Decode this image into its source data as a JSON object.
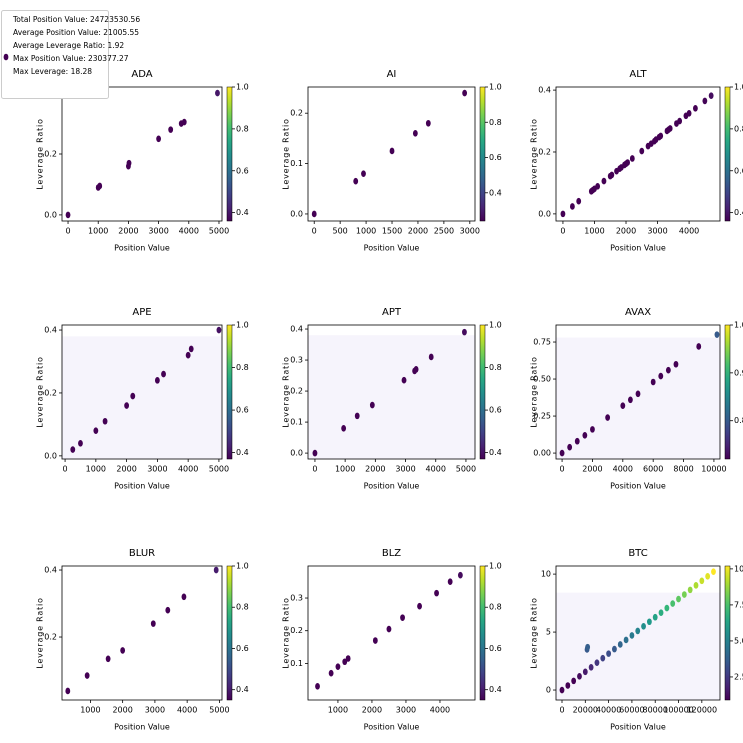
{
  "legend": {
    "color": "#440154",
    "lines": [
      "Total Position Value: 24723530.56",
      "Average Position Value: 21005.55",
      "Average Leverage Ratio: 1.92",
      "Max Position Value: 230377.27",
      "Max Leverage: 18.28"
    ]
  },
  "chart_data": [
    {
      "type": "scatter",
      "title": "ADA",
      "xlabel": "Position Value",
      "ylabel": "Leverage Ratio",
      "x": [
        0,
        1000,
        1050,
        2000,
        2020,
        3000,
        3400,
        3750,
        3850,
        4950
      ],
      "values": [
        0,
        0.09,
        0.095,
        0.16,
        0.17,
        0.25,
        0.28,
        0.3,
        0.305,
        0.4
      ],
      "xlim": [
        -200,
        5100
      ],
      "ylim": [
        -0.02,
        0.42
      ],
      "xticks": [
        0,
        1000,
        2000,
        3000,
        4000,
        5000
      ],
      "yticks": [
        {
          "value": 0,
          "label": "0.0"
        },
        0.2
      ],
      "colorbar": {
        "colormap": "viridis",
        "lim": [
          0.36,
          1
        ],
        "ticks": [
          0.4,
          0.6,
          0.8,
          {
            "value": 1,
            "label": "1.0"
          }
        ]
      }
    },
    {
      "type": "scatter",
      "title": "AI",
      "xlabel": "Position Value",
      "ylabel": "Leverage Ratio",
      "x": [
        0,
        800,
        950,
        1500,
        1950,
        2200,
        2900
      ],
      "values": [
        0,
        0.065,
        0.08,
        0.125,
        0.16,
        0.18,
        0.24
      ],
      "xlim": [
        -120,
        3100
      ],
      "ylim": [
        -0.014,
        0.252
      ],
      "xticks": [
        0,
        500,
        1000,
        1500,
        2000,
        2500,
        3000
      ],
      "yticks": [
        {
          "value": 0,
          "label": "0.0"
        },
        0.1,
        0.2
      ],
      "colorbar": {
        "colormap": "viridis",
        "lim": [
          0.24,
          1
        ],
        "ticks": [
          0.4,
          0.6,
          0.8,
          {
            "value": 1,
            "label": "1.0"
          }
        ]
      }
    },
    {
      "type": "scatter",
      "title": "ALT",
      "xlabel": "Position Value",
      "ylabel": "Leverage Ratio",
      "x": [
        0,
        300,
        500,
        900,
        950,
        1000,
        1100,
        1300,
        1500,
        1550,
        1700,
        1800,
        1850,
        1950,
        2000,
        2050,
        2200,
        2500,
        2700,
        2800,
        2900,
        2950,
        3050,
        3100,
        3300,
        3350,
        3400,
        3600,
        3700,
        3900,
        4000,
        4200,
        4500,
        4700
      ],
      "values": [
        0,
        0.024,
        0.041,
        0.073,
        0.077,
        0.081,
        0.089,
        0.106,
        0.122,
        0.126,
        0.138,
        0.146,
        0.15,
        0.158,
        0.162,
        0.166,
        0.179,
        0.203,
        0.219,
        0.227,
        0.235,
        0.24,
        0.248,
        0.252,
        0.268,
        0.272,
        0.276,
        0.292,
        0.3,
        0.317,
        0.325,
        0.341,
        0.365,
        0.382
      ],
      "xlim": [
        -220,
        4980
      ],
      "ylim": [
        -0.023,
        0.41
      ],
      "xticks": [
        0,
        1000,
        2000,
        3000,
        4000
      ],
      "yticks": [
        {
          "value": 0,
          "label": "0.0"
        },
        0.2,
        0.4
      ],
      "colorbar": {
        "colormap": "viridis",
        "lim": [
          0.36,
          1
        ],
        "ticks": [
          0.4,
          0.6,
          0.8,
          {
            "value": 1,
            "label": "1.0"
          }
        ]
      }
    },
    {
      "type": "scatter",
      "title": "APE",
      "xlabel": "Position Value",
      "ylabel": "Leverage Ratio",
      "x": [
        250,
        500,
        1000,
        1300,
        2000,
        2200,
        3000,
        3200,
        4000,
        4100,
        5000
      ],
      "values": [
        0.02,
        0.04,
        0.08,
        0.11,
        0.16,
        0.19,
        0.24,
        0.26,
        0.32,
        0.34,
        0.4
      ],
      "xlim": [
        -100,
        5100
      ],
      "ylim": [
        -0.01,
        0.416
      ],
      "xticks": [
        0,
        1000,
        2000,
        3000,
        4000,
        5000
      ],
      "yticks": [
        {
          "value": 0,
          "label": "0.0"
        },
        0.2,
        0.4
      ],
      "shade_below": 0.38,
      "shade_color": "#f6f4fc",
      "colorbar": {
        "colormap": "viridis",
        "lim": [
          0.37,
          1
        ],
        "ticks": [
          0.4,
          0.6,
          0.8,
          {
            "value": 1,
            "label": "1.0"
          }
        ]
      }
    },
    {
      "type": "scatter",
      "title": "APT",
      "xlabel": "Position Value",
      "ylabel": "Leverage Ratio",
      "x": [
        0,
        950,
        1400,
        1900,
        2950,
        3300,
        3350,
        3850,
        4950
      ],
      "values": [
        0,
        0.08,
        0.12,
        0.155,
        0.235,
        0.265,
        0.27,
        0.31,
        0.39
      ],
      "xlim": [
        -230,
        5300
      ],
      "ylim": [
        -0.019,
        0.413
      ],
      "xticks": [
        0,
        1000,
        2000,
        3000,
        4000,
        5000
      ],
      "yticks": [
        {
          "value": 0,
          "label": "0.0"
        },
        0.1,
        0.2,
        0.3,
        0.4
      ],
      "shade_below": 0.38,
      "shade_color": "#f6f4fc",
      "colorbar": {
        "colormap": "viridis",
        "lim": [
          0.37,
          1
        ],
        "ticks": [
          0.4,
          0.6,
          0.8,
          {
            "value": 1,
            "label": "1.0"
          }
        ]
      }
    },
    {
      "type": "scatter",
      "title": "AVAX",
      "xlabel": "Position Value",
      "ylabel": "Leverage Ratio",
      "x": [
        0,
        500,
        1000,
        1500,
        2000,
        3000,
        4000,
        4500,
        5000,
        6000,
        6500,
        7000,
        7500,
        9000,
        10200
      ],
      "values": [
        0,
        0.04,
        0.08,
        0.12,
        0.16,
        0.24,
        0.32,
        0.36,
        0.4,
        0.48,
        0.52,
        0.56,
        0.6,
        0.72,
        0.8
      ],
      "xlim": [
        -400,
        10400
      ],
      "ylim": [
        -0.04,
        0.865
      ],
      "xticks": [
        0,
        2000,
        4000,
        6000,
        8000,
        10000
      ],
      "yticks": [
        {
          "value": 0,
          "label": "0.00"
        },
        0.25,
        {
          "value": 0.5,
          "label": "0.50"
        },
        0.75
      ],
      "shade_below": 0.78,
      "shade_color": "#f6f4fc",
      "colorbar": {
        "colormap": "viridis",
        "lim": [
          0.72,
          1
        ],
        "ticks": [
          0.8,
          0.9,
          {
            "value": 1,
            "label": "1.0"
          }
        ]
      }
    },
    {
      "type": "scatter",
      "title": "BLUR",
      "xlabel": "Position Value",
      "ylabel": "Leverage Ratio",
      "x": [
        300,
        900,
        1550,
        2000,
        2950,
        3400,
        3900,
        4900
      ],
      "values": [
        0.039,
        0.085,
        0.135,
        0.16,
        0.24,
        0.28,
        0.32,
        0.4
      ],
      "xlim": [
        120,
        5080
      ],
      "ylim": [
        0.012,
        0.412
      ],
      "xticks": [
        1000,
        2000,
        3000,
        4000,
        5000
      ],
      "yticks": [
        0.2,
        0.4
      ],
      "colorbar": {
        "colormap": "viridis",
        "lim": [
          0.35,
          1
        ],
        "ticks": [
          0.4,
          0.6,
          0.8,
          {
            "value": 1,
            "label": "1.0"
          }
        ]
      }
    },
    {
      "type": "scatter",
      "title": "BLZ",
      "xlabel": "Position Value",
      "ylabel": "Leverage Ratio",
      "x": [
        400,
        800,
        1000,
        1200,
        1300,
        2100,
        2500,
        2900,
        3400,
        3900,
        4300,
        4600
      ],
      "values": [
        0.03,
        0.07,
        0.09,
        0.105,
        0.115,
        0.17,
        0.205,
        0.24,
        0.275,
        0.315,
        0.35,
        0.37
      ],
      "xlim": [
        120,
        5030
      ],
      "ylim": [
        -0.012,
        0.398
      ],
      "xticks": [
        1000,
        2000,
        3000,
        4000
      ],
      "yticks": [
        0.1,
        0.2,
        0.3
      ],
      "colorbar": {
        "colormap": "viridis",
        "lim": [
          0.35,
          1
        ],
        "ticks": [
          0.4,
          0.6,
          0.8,
          {
            "value": 1,
            "label": "1.0"
          }
        ]
      }
    },
    {
      "type": "scatter",
      "title": "BTC",
      "xlabel": "Position Value",
      "ylabel": "Leverage Ratio",
      "x": [
        0,
        5000,
        10000,
        15000,
        20000,
        25000,
        30000,
        35000,
        40000,
        45000,
        50000,
        55000,
        60000,
        65000,
        70000,
        75000,
        80000,
        85000,
        90000,
        95000,
        100000,
        105000,
        110000,
        115000,
        120000,
        125000,
        130000,
        21500,
        22000
      ],
      "values": [
        0,
        0.39,
        0.79,
        1.18,
        1.57,
        1.96,
        2.36,
        2.75,
        3.14,
        3.53,
        3.93,
        4.32,
        4.71,
        5.1,
        5.5,
        5.89,
        6.28,
        6.67,
        7.07,
        7.46,
        7.85,
        8.24,
        8.64,
        9.03,
        9.42,
        9.81,
        10.21,
        3.5,
        3.7
      ],
      "xlim": [
        -5150,
        135600
      ],
      "ylim": [
        -0.86,
        10.7
      ],
      "xticks": [
        0,
        20000,
        40000,
        60000,
        80000,
        100000,
        120000
      ],
      "yticks": [
        0,
        5,
        10
      ],
      "shade_below": 8.4,
      "shade_color": "#f6f4fc",
      "colorbar": {
        "colormap": "viridis",
        "lim": [
          0.9,
          10.2
        ],
        "ticks": [
          2.5,
          {
            "value": 5,
            "label": "5.0"
          },
          7.5,
          {
            "value": 10,
            "label": "10.0"
          }
        ]
      }
    }
  ]
}
